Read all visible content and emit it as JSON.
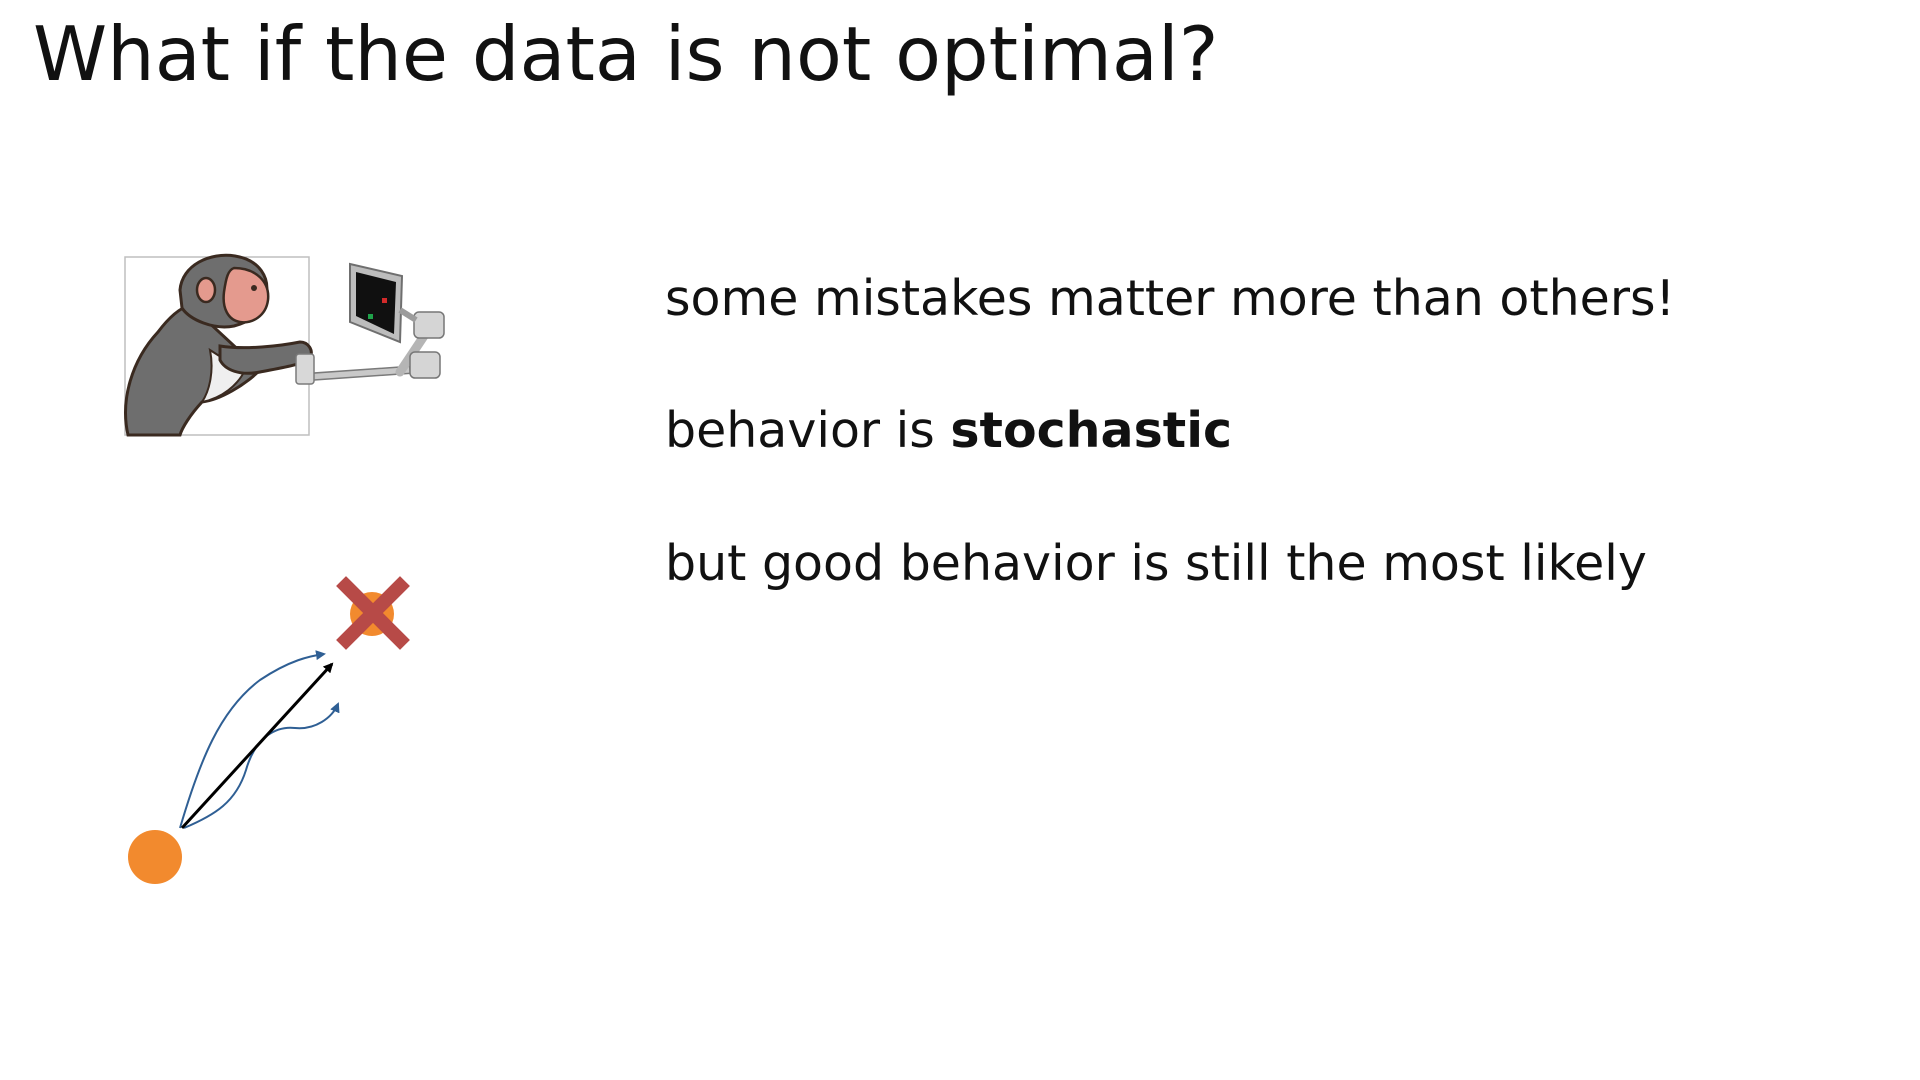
{
  "slide": {
    "title": "What if the data is not optimal?",
    "bullets": [
      {
        "text": "some mistakes matter more than others!"
      },
      {
        "text": "behavior is ",
        "emphasis": "stochastic"
      },
      {
        "text": "but good behavior is still the most likely"
      }
    ]
  },
  "illustration": {
    "icon": "monkey-at-touchscreen-icon"
  },
  "diagram": {
    "icons": [
      "start-dot-icon",
      "target-x-icon"
    ],
    "colors": {
      "start": "#f28a2e",
      "target_dot": "#f28a2e",
      "cross": "#b74a47",
      "optimal_path": "#000000",
      "alternate_paths": "#2f5f94"
    }
  }
}
